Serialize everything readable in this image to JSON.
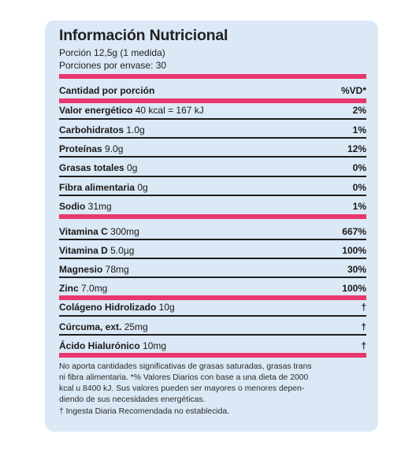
{
  "label": {
    "title": "Información Nutricional",
    "portion": "Porción 12,5g (1 medida)",
    "servings": "Porciones por envase: 30",
    "header_left": "Cantidad por porción",
    "header_right": "%VD*",
    "rows": [
      {
        "name": "Valor energético",
        "amount": " 40 kcal = 167 kJ",
        "pct": "2%"
      },
      {
        "name": "Carbohidratos",
        "amount": " 1.0g",
        "pct": "1%"
      },
      {
        "name": "Proteínas",
        "amount": " 9.0g",
        "pct": "12%"
      },
      {
        "name": "Grasas totales",
        "amount": " 0g",
        "pct": "0%"
      },
      {
        "name": "Fibra alimentaria",
        "amount": " 0g",
        "pct": "0%"
      },
      {
        "name": "Sodio",
        "amount": " 31mg",
        "pct": "1%"
      },
      {
        "name": "Vitamina C",
        "amount": " 300mg",
        "pct": "667%"
      },
      {
        "name": "Vitamina D",
        "amount": " 5.0µg",
        "pct": "100%"
      },
      {
        "name": "Magnesio",
        "amount": " 78mg",
        "pct": "30%"
      },
      {
        "name": "Zinc",
        "amount": " 7.0mg",
        "pct": "100%"
      },
      {
        "name": "Colágeno Hidrolizado",
        "amount": " 10g",
        "pct": "†"
      },
      {
        "name": "Cúrcuma, ext.",
        "amount": " 25mg",
        "pct": "†"
      },
      {
        "name": "Ácido Hialurónico",
        "amount": " 10mg",
        "pct": "†"
      }
    ],
    "footnote_lines": [
      "No aporta cantidades significativas de grasas saturadas, grasas trans",
      "ni fibra alimentaria. *% Valores Diarios con base a una dieta de 2000",
      "kcal u 8400 kJ. Sus valores pueden ser mayores o menores depen-",
      "diendo de sus necesidades energéticas.",
      "† Ingesta Diaria Recomendada no establecida."
    ],
    "accent_color": "#e8386d",
    "panel_color": "#dbe8f5"
  }
}
